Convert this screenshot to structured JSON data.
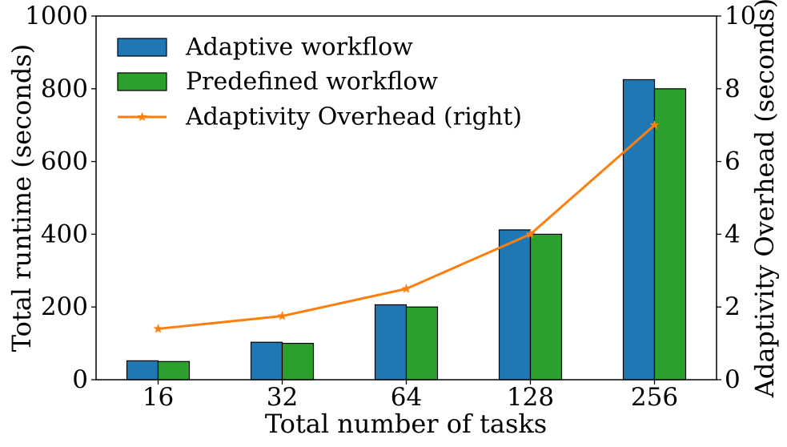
{
  "chart_data": {
    "type": "bar",
    "title": "",
    "xlabel": "Total number of tasks",
    "ylabel": "Total runtime (seconds)",
    "ylabel_right": "Adaptivity Overhead (seconds)",
    "categories": [
      "16",
      "32",
      "64",
      "128",
      "256"
    ],
    "ylim": [
      0,
      1000
    ],
    "ylim_right": [
      0,
      10
    ],
    "yticks": [
      "0",
      "200",
      "400",
      "600",
      "800",
      "1000"
    ],
    "yticks_right": [
      "0",
      "2",
      "4",
      "6",
      "8",
      "10"
    ],
    "grid": false,
    "legend_position": "top-left",
    "series": [
      {
        "name": "Adaptive workflow",
        "type": "bar",
        "axis": "left",
        "color": "#1f77b4",
        "values": [
          52,
          103,
          206,
          412,
          825
        ]
      },
      {
        "name": "Predefined workflow",
        "type": "bar",
        "axis": "left",
        "color": "#2ca02c",
        "values": [
          50,
          100,
          200,
          400,
          800
        ]
      },
      {
        "name": "Adaptivity Overhead (right)",
        "type": "line",
        "axis": "right",
        "color": "#ff7f0e",
        "marker": "star",
        "values": [
          1.4,
          1.75,
          2.5,
          4.0,
          7.0
        ]
      }
    ]
  }
}
